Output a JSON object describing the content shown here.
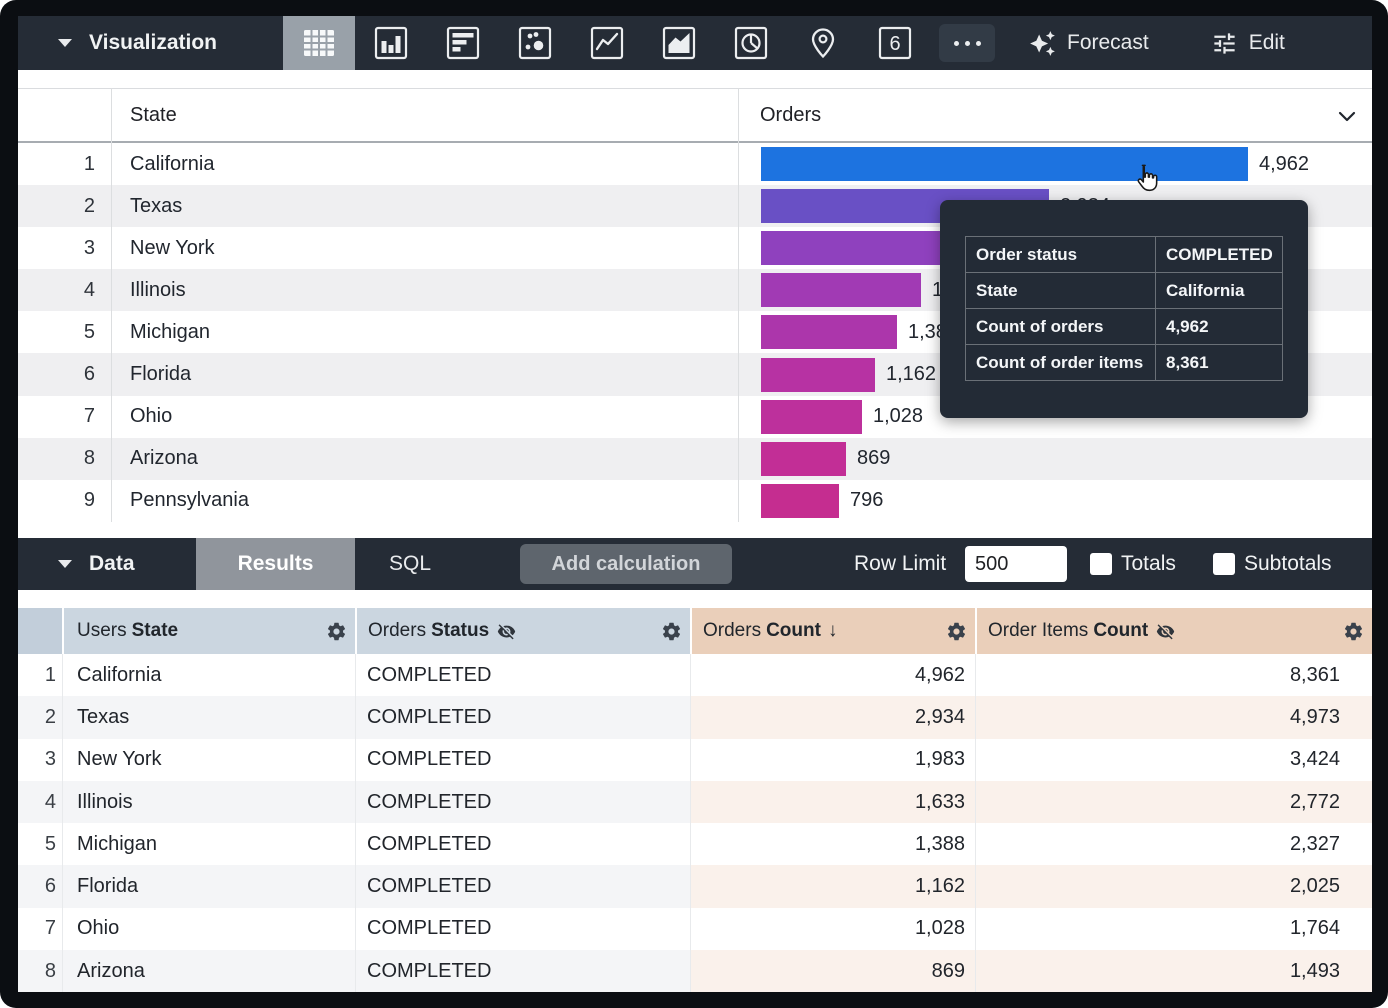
{
  "viz_toolbar": {
    "title": "Visualization",
    "icons": [
      "table",
      "column-chart",
      "bar-chart",
      "scatter",
      "line-chart",
      "area-chart",
      "pie-chart",
      "map-pin",
      "single-value",
      "more"
    ],
    "selected_icon": "table",
    "forecast_label": "Forecast",
    "edit_label": "Edit"
  },
  "viz_table": {
    "state_header": "State",
    "orders_header": "Orders",
    "max_value": 4962,
    "rows": [
      {
        "num": "1",
        "state": "California",
        "value": 4962,
        "label": "4,962",
        "color": "#1d73e0"
      },
      {
        "num": "2",
        "state": "Texas",
        "value": 2934,
        "label": "2,934",
        "color": "#6950c5"
      },
      {
        "num": "3",
        "state": "New York",
        "value": 1983,
        "label": "1,983",
        "color": "#8f41be"
      },
      {
        "num": "4",
        "state": "Illinois",
        "value": 1633,
        "label": "1,633",
        "color": "#a13ab4"
      },
      {
        "num": "5",
        "state": "Michigan",
        "value": 1388,
        "label": "1,388",
        "color": "#ac36ab"
      },
      {
        "num": "6",
        "state": "Florida",
        "value": 1162,
        "label": "1,162",
        "color": "#b732a3"
      },
      {
        "num": "7",
        "state": "Ohio",
        "value": 1028,
        "label": "1,028",
        "color": "#bd309c"
      },
      {
        "num": "8",
        "state": "Arizona",
        "value": 869,
        "label": "869",
        "color": "#c22e96"
      },
      {
        "num": "9",
        "state": "Pennsylvania",
        "value": 796,
        "label": "796",
        "color": "#c52d90"
      }
    ]
  },
  "tooltip": {
    "rows": [
      {
        "label": "Order status",
        "value": "COMPLETED"
      },
      {
        "label": "State",
        "value": "California"
      },
      {
        "label": "Count of orders",
        "value": "4,962"
      },
      {
        "label": "Count of order items",
        "value": "8,361"
      }
    ]
  },
  "data_toolbar": {
    "title": "Data",
    "results_tab": "Results",
    "sql_tab": "SQL",
    "add_calculation": "Add calculation",
    "row_limit_label": "Row Limit",
    "row_limit_value": "500",
    "totals_label": "Totals",
    "subtotals_label": "Subtotals"
  },
  "data_table": {
    "headers": [
      {
        "prefix": "Users",
        "name": "State",
        "hidden_icon": false,
        "sort": ""
      },
      {
        "prefix": "Orders",
        "name": "Status",
        "hidden_icon": true,
        "sort": ""
      },
      {
        "prefix": "Orders",
        "name": "Count",
        "hidden_icon": false,
        "sort": "desc"
      },
      {
        "prefix": "Order Items",
        "name": "Count",
        "hidden_icon": true,
        "sort": ""
      }
    ],
    "rows": [
      {
        "num": "1",
        "state": "California",
        "status": "COMPLETED",
        "orders_count": "4,962",
        "items_count": "8,361"
      },
      {
        "num": "2",
        "state": "Texas",
        "status": "COMPLETED",
        "orders_count": "2,934",
        "items_count": "4,973"
      },
      {
        "num": "3",
        "state": "New York",
        "status": "COMPLETED",
        "orders_count": "1,983",
        "items_count": "3,424"
      },
      {
        "num": "4",
        "state": "Illinois",
        "status": "COMPLETED",
        "orders_count": "1,633",
        "items_count": "2,772"
      },
      {
        "num": "5",
        "state": "Michigan",
        "status": "COMPLETED",
        "orders_count": "1,388",
        "items_count": "2,327"
      },
      {
        "num": "6",
        "state": "Florida",
        "status": "COMPLETED",
        "orders_count": "1,162",
        "items_count": "2,025"
      },
      {
        "num": "7",
        "state": "Ohio",
        "status": "COMPLETED",
        "orders_count": "1,028",
        "items_count": "1,764"
      },
      {
        "num": "8",
        "state": "Arizona",
        "status": "COMPLETED",
        "orders_count": "869",
        "items_count": "1,493"
      }
    ]
  },
  "colors": {
    "toolbar_bg": "#252c36",
    "selected_icon_bg": "#99a1a9",
    "results_tab_bg": "#90959c",
    "header_blue": "#cbd6e0",
    "header_peach": "#eacfba",
    "row_stripe": "#efeff1",
    "row_stripe_peach": "#faf1eb",
    "tooltip_bg": "#232b36",
    "bar_max": "#1d73e0",
    "bar_min": "#c52d90"
  }
}
